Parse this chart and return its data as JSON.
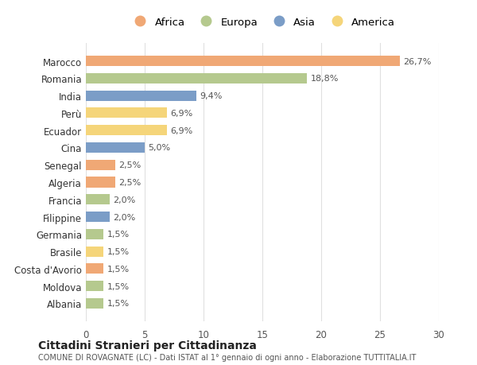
{
  "countries": [
    "Marocco",
    "Romania",
    "India",
    "Perù",
    "Ecuador",
    "Cina",
    "Senegal",
    "Algeria",
    "Francia",
    "Filippine",
    "Germania",
    "Brasile",
    "Costa d'Avorio",
    "Moldova",
    "Albania"
  ],
  "values": [
    26.7,
    18.8,
    9.4,
    6.9,
    6.9,
    5.0,
    2.5,
    2.5,
    2.0,
    2.0,
    1.5,
    1.5,
    1.5,
    1.5,
    1.5
  ],
  "labels": [
    "26,7%",
    "18,8%",
    "9,4%",
    "6,9%",
    "6,9%",
    "5,0%",
    "2,5%",
    "2,5%",
    "2,0%",
    "2,0%",
    "1,5%",
    "1,5%",
    "1,5%",
    "1,5%",
    "1,5%"
  ],
  "regions": [
    "Africa",
    "Europa",
    "Asia",
    "America",
    "America",
    "Asia",
    "Africa",
    "Africa",
    "Europa",
    "Asia",
    "Europa",
    "America",
    "Africa",
    "Europa",
    "Europa"
  ],
  "colors": {
    "Africa": "#F0A875",
    "Europa": "#B5C98E",
    "Asia": "#7B9DC7",
    "America": "#F5D57A"
  },
  "legend_order": [
    "Africa",
    "Europa",
    "Asia",
    "America"
  ],
  "title": "Cittadini Stranieri per Cittadinanza",
  "subtitle": "COMUNE DI ROVAGNATE (LC) - Dati ISTAT al 1° gennaio di ogni anno - Elaborazione TUTTITALIA.IT",
  "xlim": [
    0,
    30
  ],
  "xticks": [
    0,
    5,
    10,
    15,
    20,
    25,
    30
  ],
  "background_color": "#ffffff",
  "grid_color": "#e0e0e0"
}
